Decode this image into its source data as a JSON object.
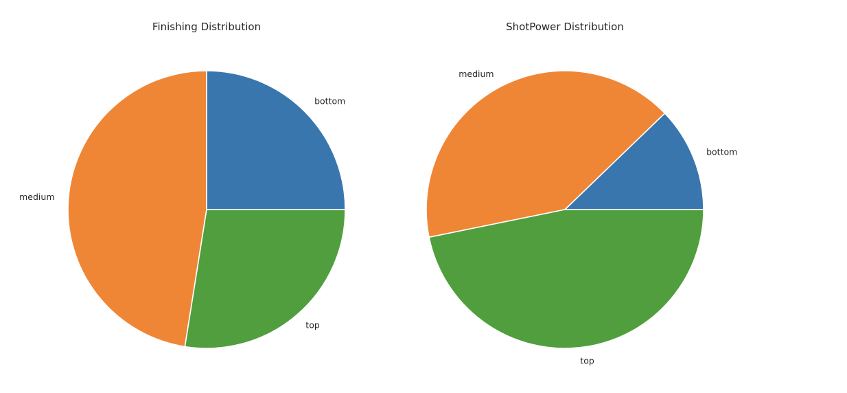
{
  "chart_data": [
    {
      "type": "pie",
      "title": "Finishing Distribution",
      "categories": [
        "bottom",
        "medium",
        "top"
      ],
      "values": [
        25.0,
        47.5,
        27.5
      ],
      "colors": [
        "#3a76ae",
        "#ef8636",
        "#519e3e"
      ]
    },
    {
      "type": "pie",
      "title": "ShotPower Distribution",
      "categories": [
        "bottom",
        "medium",
        "top"
      ],
      "values": [
        12.2,
        41.0,
        46.8
      ],
      "colors": [
        "#3a76ae",
        "#ef8636",
        "#519e3e"
      ]
    }
  ]
}
